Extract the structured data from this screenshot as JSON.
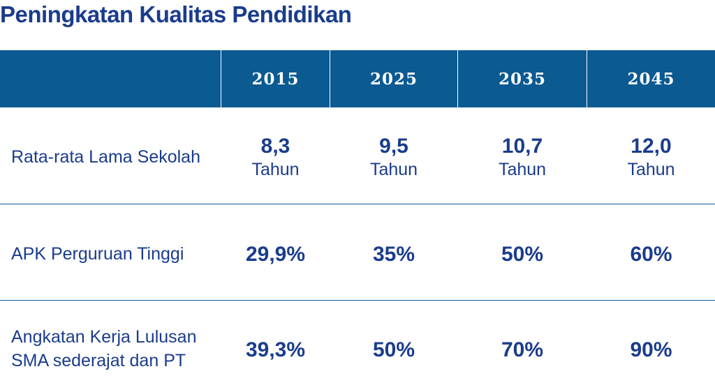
{
  "title": "Peningkatan Kualitas Pendidikan",
  "columns": [
    "2015",
    "2025",
    "2035",
    "2045"
  ],
  "rows": [
    {
      "label_lines": [
        "Rata-rata Lama Sekolah"
      ],
      "values": [
        "8,3",
        "9,5",
        "10,7",
        "12,0"
      ],
      "unit": "Tahun"
    },
    {
      "label_lines": [
        "APK Perguruan Tinggi"
      ],
      "values": [
        "29,9%",
        "35%",
        "50%",
        "60%"
      ]
    },
    {
      "label_lines": [
        "Angkatan Kerja Lulusan",
        "SMA sederajat dan PT"
      ],
      "values": [
        "39,3%",
        "50%",
        "70%",
        "90%"
      ]
    }
  ],
  "colors": {
    "header_bg": "#0b5a92",
    "text": "#1a3c8c",
    "header_text": "#ffffff"
  }
}
